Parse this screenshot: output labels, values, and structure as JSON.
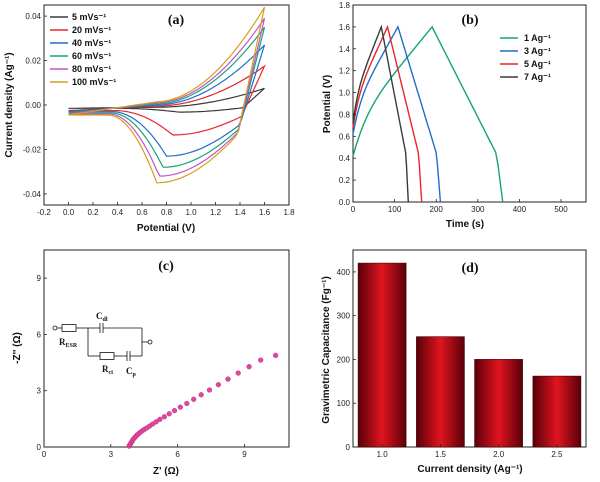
{
  "chart_data": [
    {
      "type": "line",
      "panel_label": "(a)",
      "xlabel": "Potential (V)",
      "ylabel": "Current density (Ag⁻¹)",
      "xlim": [
        -0.2,
        1.8
      ],
      "ylim": [
        -0.045,
        0.045
      ],
      "xticks": [
        "-0.2",
        "0.0",
        "0.2",
        "0.4",
        "0.6",
        "0.8",
        "1.0",
        "1.2",
        "1.4",
        "1.6",
        "1.8"
      ],
      "yticks": [
        "-0.04",
        "-0.02",
        "0.00",
        "0.02",
        "0.04"
      ],
      "legend_position": "top-left",
      "series": [
        {
          "name": "5 mVs⁻¹",
          "color": "#3a3a3a",
          "x_start": 0.0,
          "x_vertex": 1.6,
          "upper_end": 0.0075,
          "upper_mid": -0.001,
          "lower_min": -0.0032,
          "lower_min_x": 0.9,
          "start_value": -0.0015
        },
        {
          "name": "20 mVs⁻¹",
          "color": "#e8262b",
          "x_start": 0.0,
          "x_vertex": 1.6,
          "upper_end": 0.0175,
          "upper_mid": -0.0005,
          "lower_min": -0.0135,
          "lower_min_x": 0.85,
          "start_value": -0.0025
        },
        {
          "name": "40 mVs⁻¹",
          "color": "#1f6fc8",
          "x_start": 0.0,
          "x_vertex": 1.6,
          "upper_end": 0.027,
          "upper_mid": 0.0,
          "lower_min": -0.023,
          "lower_min_x": 0.8,
          "start_value": -0.003
        },
        {
          "name": "60 mVs⁻¹",
          "color": "#16a37a",
          "x_start": 0.0,
          "x_vertex": 1.6,
          "upper_end": 0.035,
          "upper_mid": 0.0005,
          "lower_min": -0.028,
          "lower_min_x": 0.77,
          "start_value": -0.0035
        },
        {
          "name": "80 mVs⁻¹",
          "color": "#c452c9",
          "x_start": 0.0,
          "x_vertex": 1.6,
          "upper_end": 0.039,
          "upper_mid": 0.001,
          "lower_min": -0.032,
          "lower_min_x": 0.74,
          "start_value": -0.004
        },
        {
          "name": "100 mVs⁻¹",
          "color": "#d4a017",
          "x_start": 0.0,
          "x_vertex": 1.6,
          "upper_end": 0.044,
          "upper_mid": 0.0015,
          "lower_min": -0.035,
          "lower_min_x": 0.72,
          "start_value": -0.0045
        }
      ]
    },
    {
      "type": "line",
      "panel_label": "(b)",
      "xlabel": "Time (s)",
      "ylabel": "Potential (V)",
      "xlim": [
        0,
        560
      ],
      "ylim": [
        0.0,
        1.8
      ],
      "xticks": [
        "0",
        "100",
        "200",
        "300",
        "400",
        "500"
      ],
      "yticks": [
        "0.0",
        "0.2",
        "0.4",
        "0.6",
        "0.8",
        "1.0",
        "1.2",
        "1.4",
        "1.6",
        "1.8"
      ],
      "legend_position": "top-right",
      "series": [
        {
          "name": "1  Ag⁻¹",
          "color": "#16a37a",
          "start_v": 0.42,
          "t_peak": 190,
          "peak_v": 1.6,
          "t_end": 360
        },
        {
          "name": "3  Ag⁻¹",
          "color": "#1f6fc8",
          "start_v": 0.62,
          "t_peak": 108,
          "peak_v": 1.6,
          "t_end": 210
        },
        {
          "name": "5  Ag⁻¹",
          "color": "#e8262b",
          "start_v": 0.68,
          "t_peak": 83,
          "peak_v": 1.6,
          "t_end": 165
        },
        {
          "name": "7  Ag⁻¹",
          "color": "#3a3a3a",
          "start_v": 0.72,
          "t_peak": 68,
          "peak_v": 1.6,
          "t_end": 133
        }
      ]
    },
    {
      "type": "scatter",
      "panel_label": "(c)",
      "xlabel": "Z' (Ω)",
      "ylabel": "-Z'' (Ω)",
      "xlim": [
        0,
        11
      ],
      "ylim": [
        0,
        10.5
      ],
      "xticks": [
        "0",
        "3",
        "6",
        "9"
      ],
      "yticks": [
        "0",
        "3",
        "6",
        "9"
      ],
      "marker_color": "#e0479e",
      "points": [
        [
          3.82,
          0.05
        ],
        [
          3.86,
          0.12
        ],
        [
          3.9,
          0.2
        ],
        [
          3.94,
          0.28
        ],
        [
          3.98,
          0.36
        ],
        [
          4.03,
          0.44
        ],
        [
          4.09,
          0.52
        ],
        [
          4.15,
          0.6
        ],
        [
          4.22,
          0.68
        ],
        [
          4.3,
          0.76
        ],
        [
          4.39,
          0.84
        ],
        [
          4.49,
          0.92
        ],
        [
          4.6,
          1.01
        ],
        [
          4.73,
          1.11
        ],
        [
          4.87,
          1.22
        ],
        [
          5.03,
          1.34
        ],
        [
          5.2,
          1.47
        ],
        [
          5.4,
          1.61
        ],
        [
          5.62,
          1.77
        ],
        [
          5.86,
          1.94
        ],
        [
          6.12,
          2.12
        ],
        [
          6.41,
          2.32
        ],
        [
          6.72,
          2.54
        ],
        [
          7.06,
          2.78
        ],
        [
          7.43,
          3.04
        ],
        [
          7.83,
          3.32
        ],
        [
          8.26,
          3.62
        ],
        [
          8.72,
          3.94
        ],
        [
          9.21,
          4.28
        ],
        [
          9.73,
          4.63
        ],
        [
          10.4,
          4.88
        ]
      ],
      "circuit_labels": {
        "r_esr": "R",
        "r_esr_sub": "ESR",
        "c_dl": "C",
        "c_dl_sub": "dl",
        "r_ct": "R",
        "r_ct_sub": "ct",
        "c_p": "C",
        "c_p_sub": "p"
      }
    },
    {
      "type": "bar",
      "panel_label": "(d)",
      "xlabel": "Current density (Ag⁻¹)",
      "ylabel": "Gravimetric Capacitance (Fg⁻¹)",
      "categories": [
        "1.0",
        "1.5",
        "2.0",
        "2.5"
      ],
      "values": [
        420,
        252,
        200,
        162
      ],
      "ylim": [
        0,
        450
      ],
      "yticks": [
        "0",
        "100",
        "200",
        "300",
        "400"
      ],
      "bar_color": "#c0101a"
    }
  ]
}
